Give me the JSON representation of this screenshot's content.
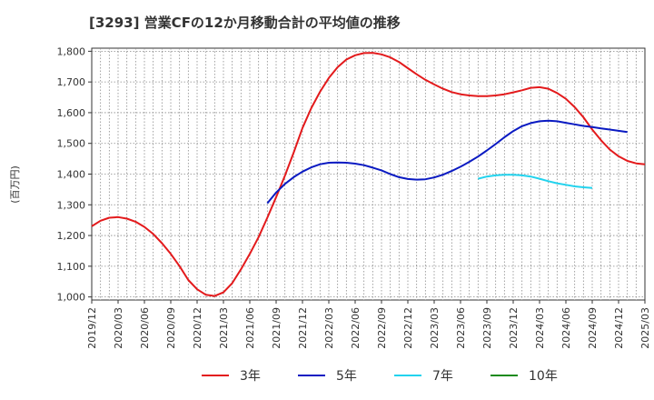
{
  "chart_data": {
    "type": "line",
    "title": "[3293]  営業CFの12か月移動合計の平均値の推移",
    "ylabel": "(百万円)",
    "xlabel": "",
    "ylim": [
      990,
      1810
    ],
    "yticks": [
      1000,
      1100,
      1200,
      1300,
      1400,
      1500,
      1600,
      1700,
      1800
    ],
    "ytick_labels": [
      "1,000",
      "1,100",
      "1,200",
      "1,300",
      "1,400",
      "1,500",
      "1,600",
      "1,700",
      "1,800"
    ],
    "xtick_labels": [
      "2019/12",
      "2020/03",
      "2020/06",
      "2020/09",
      "2020/12",
      "2021/03",
      "2021/06",
      "2021/09",
      "2021/12",
      "2022/03",
      "2022/06",
      "2022/09",
      "2022/12",
      "2023/03",
      "2023/06",
      "2023/09",
      "2023/12",
      "2024/03",
      "2024/06",
      "2024/09",
      "2024/12",
      "2025/03"
    ],
    "grid": true,
    "legend_position": "bottom",
    "series": [
      {
        "name": "3年",
        "color": "#e31a1c",
        "start": "2019/12",
        "values": [
          1230,
          1248,
          1258,
          1260,
          1255,
          1245,
          1228,
          1205,
          1175,
          1140,
          1100,
          1055,
          1025,
          1007,
          1003,
          1015,
          1045,
          1090,
          1140,
          1195,
          1258,
          1325,
          1395,
          1470,
          1550,
          1615,
          1668,
          1713,
          1748,
          1773,
          1787,
          1794,
          1795,
          1790,
          1780,
          1765,
          1745,
          1725,
          1707,
          1692,
          1678,
          1667,
          1660,
          1656,
          1654,
          1654,
          1656,
          1660,
          1666,
          1673,
          1681,
          1683,
          1678,
          1664,
          1645,
          1618,
          1585,
          1545,
          1510,
          1480,
          1458,
          1443,
          1435,
          1432
        ]
      },
      {
        "name": "5年",
        "color": "#0a1ac2",
        "start": "2021/08",
        "values": [
          1305,
          1340,
          1368,
          1390,
          1408,
          1422,
          1432,
          1437,
          1438,
          1437,
          1434,
          1429,
          1421,
          1412,
          1400,
          1390,
          1384,
          1382,
          1383,
          1389,
          1398,
          1410,
          1424,
          1440,
          1457,
          1477,
          1498,
          1520,
          1540,
          1556,
          1566,
          1572,
          1574,
          1572,
          1567,
          1562,
          1557,
          1553,
          1549,
          1545,
          1541,
          1537
        ]
      },
      {
        "name": "7年",
        "color": "#22d3ee",
        "start": "2023/08",
        "values": [
          1385,
          1392,
          1396,
          1398,
          1398,
          1396,
          1392,
          1385,
          1377,
          1370,
          1365,
          1360,
          1357,
          1355
        ]
      },
      {
        "name": "10年",
        "color": "#1a8a1a",
        "start": "2019/12",
        "values": []
      }
    ]
  }
}
